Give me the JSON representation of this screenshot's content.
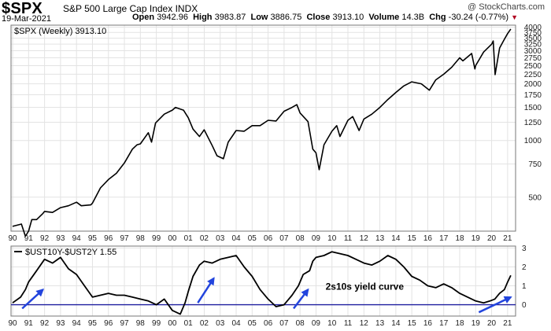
{
  "header": {
    "symbol": "$SPX",
    "name": "S&P 500 Large Cap Index",
    "exchange": "INDX",
    "date": "19-Mar-2021",
    "open_label": "Open",
    "open": "3942.96",
    "high_label": "High",
    "high": "3983.87",
    "low_label": "Low",
    "low": "3886.75",
    "close_label": "Close",
    "close": "3913.10",
    "volume_label": "Volume",
    "volume": "14.3B",
    "chg_label": "Chg",
    "chg": "-30.24 (-0.77%)",
    "chg_marker": "▼",
    "copyright": "@ StockCharts.com"
  },
  "colors": {
    "series": "#000000",
    "zero_line": "#1f1fa0",
    "arrows": "#2244dd",
    "grid": "#e3e3e3"
  },
  "chart_data": [
    {
      "type": "line",
      "legend": "$SPX (Weekly) 3913.10",
      "y_scale": "log",
      "ylim": [
        330,
        4100
      ],
      "y_ticks": [
        500,
        750,
        1000,
        1250,
        1500,
        1750,
        2000,
        2250,
        2500,
        2750,
        3000,
        3250,
        3500,
        3750,
        4000
      ],
      "x_ticks": [
        "90",
        "91",
        "92",
        "93",
        "94",
        "95",
        "96",
        "97",
        "98",
        "99",
        "00",
        "01",
        "02",
        "03",
        "04",
        "05",
        "06",
        "07",
        "08",
        "09",
        "10",
        "11",
        "12",
        "13",
        "14",
        "15",
        "16",
        "17",
        "18",
        "19",
        "20",
        "21"
      ],
      "grid": true,
      "x": [
        1990.0,
        1990.55,
        1990.8,
        1991.0,
        1991.2,
        1991.5,
        1991.9,
        1992.0,
        1992.5,
        1993.0,
        1993.5,
        1994.0,
        1994.3,
        1994.9,
        1995.0,
        1995.5,
        1996.0,
        1996.5,
        1997.0,
        1997.5,
        1997.8,
        1998.0,
        1998.5,
        1998.7,
        1998.95,
        1999.5,
        2000.0,
        2000.2,
        2000.7,
        2001.0,
        2001.3,
        2001.7,
        2002.0,
        2002.5,
        2002.8,
        2003.2,
        2003.5,
        2004.0,
        2004.5,
        2005.0,
        2005.5,
        2006.0,
        2006.5,
        2007.0,
        2007.5,
        2007.8,
        2008.0,
        2008.5,
        2008.8,
        2009.0,
        2009.2,
        2009.5,
        2010.0,
        2010.3,
        2010.5,
        2011.0,
        2011.3,
        2011.7,
        2012.0,
        2012.5,
        2013.0,
        2013.5,
        2014.0,
        2014.5,
        2015.0,
        2015.6,
        2016.1,
        2016.5,
        2017.0,
        2017.5,
        2018.0,
        2018.2,
        2018.75,
        2018.95,
        2019.0,
        2019.5,
        2020.0,
        2020.1,
        2020.22,
        2020.5,
        2020.8,
        2021.0,
        2021.2
      ],
      "y": [
        350,
        360,
        310,
        330,
        380,
        380,
        410,
        420,
        415,
        440,
        450,
        470,
        450,
        455,
        465,
        560,
        620,
        670,
        760,
        900,
        950,
        960,
        1100,
        980,
        1240,
        1380,
        1450,
        1500,
        1450,
        1320,
        1150,
        1050,
        1140,
        940,
        830,
        800,
        980,
        1130,
        1120,
        1200,
        1200,
        1280,
        1270,
        1430,
        1500,
        1550,
        1400,
        1260,
        900,
        860,
        700,
        950,
        1120,
        1200,
        1050,
        1280,
        1340,
        1130,
        1300,
        1380,
        1500,
        1650,
        1800,
        1950,
        2050,
        2000,
        1850,
        2100,
        2250,
        2450,
        2750,
        2650,
        2900,
        2400,
        2500,
        2950,
        3250,
        3380,
        2240,
        3100,
        3450,
        3700,
        3913
      ]
    },
    {
      "type": "line",
      "legend": "$UST10Y-$UST2Y 1.55",
      "ylim": [
        -0.6,
        3.1
      ],
      "y_ticks": [
        0,
        1,
        2,
        3
      ],
      "x_ticks": [
        "90",
        "91",
        "92",
        "93",
        "94",
        "95",
        "96",
        "97",
        "98",
        "99",
        "00",
        "01",
        "02",
        "03",
        "04",
        "05",
        "06",
        "07",
        "08",
        "09",
        "10",
        "11",
        "12",
        "13",
        "14",
        "15",
        "16",
        "17",
        "18",
        "19",
        "20",
        "21"
      ],
      "grid": true,
      "x": [
        1990.0,
        1990.5,
        1990.8,
        1991.0,
        1991.5,
        1992.0,
        1992.5,
        1993.0,
        1993.5,
        1994.0,
        1994.5,
        1995.0,
        1995.5,
        1996.0,
        1996.5,
        1997.0,
        1997.5,
        1998.0,
        1998.5,
        1999.0,
        1999.5,
        2000.0,
        2000.5,
        2000.8,
        2001.0,
        2001.3,
        2001.7,
        2002.0,
        2002.5,
        2003.0,
        2003.5,
        2004.0,
        2004.5,
        2005.0,
        2005.5,
        2006.0,
        2006.5,
        2007.0,
        2007.5,
        2007.9,
        2008.2,
        2008.6,
        2008.8,
        2009.0,
        2009.5,
        2010.0,
        2010.5,
        2011.0,
        2011.5,
        2012.0,
        2012.5,
        2013.0,
        2013.5,
        2014.0,
        2014.5,
        2015.0,
        2015.5,
        2016.0,
        2016.5,
        2017.0,
        2017.5,
        2018.0,
        2018.5,
        2019.0,
        2019.5,
        2019.9,
        2020.2,
        2020.5,
        2020.8,
        2021.0,
        2021.2
      ],
      "y": [
        0.1,
        0.4,
        0.8,
        1.2,
        1.8,
        2.4,
        2.2,
        2.5,
        1.9,
        1.6,
        1.0,
        0.4,
        0.5,
        0.6,
        0.5,
        0.5,
        0.4,
        0.3,
        0.2,
        0.0,
        0.3,
        -0.3,
        -0.5,
        0.1,
        0.7,
        1.5,
        2.1,
        2.3,
        2.2,
        2.4,
        2.5,
        2.6,
        2.0,
        1.5,
        0.8,
        0.3,
        -0.1,
        0.0,
        0.5,
        1.0,
        1.6,
        1.8,
        2.3,
        2.5,
        2.6,
        2.8,
        2.7,
        2.6,
        2.4,
        2.2,
        2.1,
        2.3,
        2.6,
        2.4,
        2.0,
        1.5,
        1.3,
        1.0,
        0.9,
        1.1,
        0.9,
        0.6,
        0.4,
        0.2,
        0.1,
        0.2,
        0.3,
        0.6,
        0.8,
        1.2,
        1.55
      ],
      "annotations": [
        {
          "text": "2s10s yield curve",
          "x": 2009.6,
          "y": 0.8
        }
      ],
      "arrows": [
        {
          "from": [
            1990.6,
            -0.2
          ],
          "to": [
            1991.9,
            0.8
          ]
        },
        {
          "from": [
            2001.6,
            0.1
          ],
          "to": [
            2002.6,
            1.4
          ]
        },
        {
          "from": [
            2007.6,
            -0.2
          ],
          "to": [
            2008.5,
            0.8
          ]
        },
        {
          "from": [
            2019.2,
            -0.4
          ],
          "to": [
            2021.2,
            0.4
          ]
        }
      ]
    }
  ]
}
